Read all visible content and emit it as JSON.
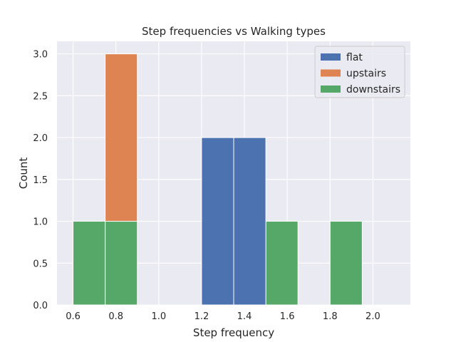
{
  "chart_data": {
    "type": "bar",
    "subtype": "stacked-histogram",
    "title": "Step frequencies vs Walking types",
    "xlabel": "Step frequency",
    "ylabel": "Count",
    "xlim": [
      0.525,
      2.175
    ],
    "ylim": [
      0,
      3.15
    ],
    "x_ticks": [
      0.6,
      0.8,
      1.0,
      1.2,
      1.4,
      1.6,
      1.8,
      2.0
    ],
    "x_tick_labels": [
      "0.6",
      "0.8",
      "1.0",
      "1.2",
      "1.4",
      "1.6",
      "1.8",
      "2.0"
    ],
    "y_ticks": [
      0.0,
      0.5,
      1.0,
      1.5,
      2.0,
      2.5,
      3.0
    ],
    "y_tick_labels": [
      "0.0",
      "0.5",
      "1.0",
      "1.5",
      "2.0",
      "2.5",
      "3.0"
    ],
    "bin_edges": [
      0.6,
      0.75,
      0.9,
      1.05,
      1.2,
      1.35,
      1.5,
      1.65,
      1.8,
      1.95,
      2.1
    ],
    "series": [
      {
        "name": "flat",
        "color": "#4c72b0",
        "values": [
          0,
          0,
          0,
          0,
          2,
          2,
          0,
          0,
          0,
          0
        ]
      },
      {
        "name": "upstairs",
        "color": "#dd8452",
        "values": [
          0,
          2,
          0,
          0,
          0,
          0,
          0,
          0,
          0,
          0
        ]
      },
      {
        "name": "downstairs",
        "color": "#55a868",
        "values": [
          1,
          1,
          0,
          0,
          0,
          0,
          1,
          0,
          1,
          0
        ]
      }
    ],
    "grid": true,
    "legend_position": "top-right",
    "background_color": "#eaeaf2",
    "grid_color": "#ffffff"
  }
}
